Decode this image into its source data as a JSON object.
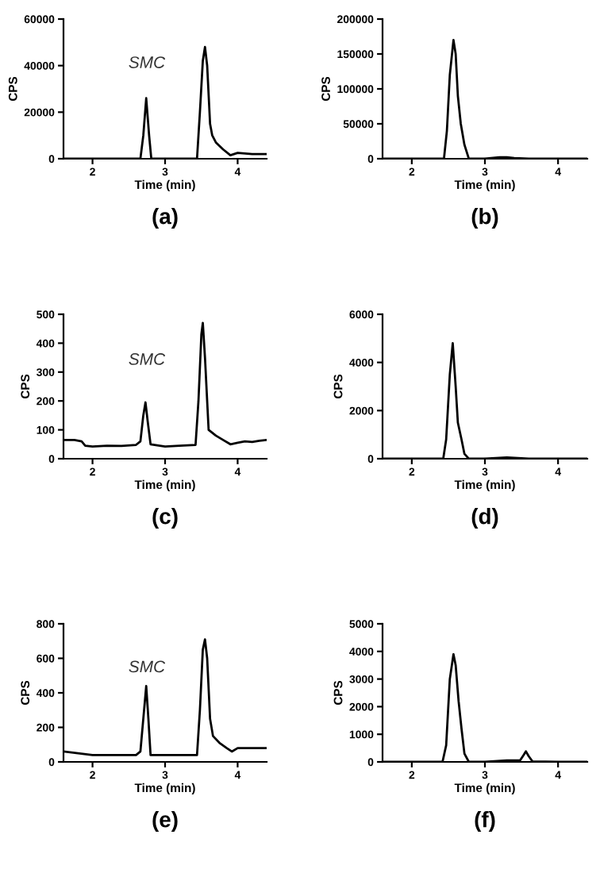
{
  "chart_data": [
    {
      "type": "line",
      "xlabel": "Time (min)",
      "ylabel": "CPS",
      "xlim": [
        1.6,
        4.4
      ],
      "xticks": [
        2,
        3,
        4
      ],
      "ylim": [
        0,
        60000
      ],
      "yticks": [
        0,
        20000,
        40000,
        60000
      ],
      "grid": false,
      "legend": false,
      "marker": "none",
      "line_style": "solid",
      "series": [
        {
          "color": "#000000",
          "x": [
            1.6,
            2.0,
            2.5,
            2.66,
            2.7,
            2.74,
            2.78,
            2.81,
            3.0,
            3.44,
            3.48,
            3.52,
            3.55,
            3.58,
            3.62,
            3.65,
            3.7,
            3.8,
            3.9,
            4.0,
            4.2,
            4.4
          ],
          "values": [
            0,
            0,
            0,
            0,
            10000,
            26000,
            10000,
            0,
            0,
            0,
            20000,
            42000,
            48000,
            40000,
            15000,
            10000,
            7000,
            4000,
            1500,
            2500,
            2000,
            2000
          ]
        }
      ],
      "title": "(a)",
      "annotations": [
        "SMC"
      ]
    },
    {
      "type": "line",
      "xlabel": "Time (min)",
      "ylabel": "CPS",
      "xlim": [
        1.6,
        4.4
      ],
      "xticks": [
        2,
        3,
        4
      ],
      "ylim": [
        0,
        200000
      ],
      "yticks": [
        0,
        50000,
        100000,
        150000,
        200000
      ],
      "grid": false,
      "legend": false,
      "marker": "none",
      "line_style": "solid",
      "series": [
        {
          "color": "#000000",
          "x": [
            1.6,
            2.0,
            2.44,
            2.48,
            2.52,
            2.57,
            2.6,
            2.63,
            2.67,
            2.72,
            2.78,
            3.0,
            3.2,
            3.3,
            3.4,
            3.6,
            4.0,
            4.4
          ],
          "values": [
            0,
            0,
            0,
            40000,
            120000,
            170000,
            150000,
            90000,
            50000,
            20000,
            0,
            0,
            2000,
            2000,
            1000,
            0,
            0,
            0
          ]
        }
      ],
      "title": "(b)"
    },
    {
      "type": "line",
      "xlabel": "Time (min)",
      "ylabel": "CPS",
      "xlim": [
        1.6,
        4.4
      ],
      "xticks": [
        2,
        3,
        4
      ],
      "ylim": [
        0,
        500
      ],
      "yticks": [
        0,
        100,
        200,
        300,
        400,
        500
      ],
      "grid": false,
      "legend": false,
      "marker": "none",
      "line_style": "solid",
      "series": [
        {
          "color": "#000000",
          "x": [
            1.6,
            1.75,
            1.85,
            1.9,
            2.0,
            2.2,
            2.4,
            2.6,
            2.66,
            2.7,
            2.73,
            2.76,
            2.8,
            3.0,
            3.2,
            3.42,
            3.46,
            3.5,
            3.52,
            3.55,
            3.6,
            3.7,
            3.8,
            3.9,
            4.0,
            4.1,
            4.2,
            4.3,
            4.4
          ],
          "values": [
            65,
            65,
            60,
            45,
            42,
            45,
            44,
            48,
            60,
            150,
            195,
            130,
            50,
            42,
            45,
            48,
            200,
            430,
            470,
            350,
            100,
            80,
            65,
            50,
            55,
            60,
            58,
            62,
            65
          ]
        }
      ],
      "title": "(c)",
      "annotations": [
        "SMC"
      ]
    },
    {
      "type": "line",
      "xlabel": "Time (min)",
      "ylabel": "CPS",
      "xlim": [
        1.6,
        4.4
      ],
      "xticks": [
        2,
        3,
        4
      ],
      "ylim": [
        0,
        6000
      ],
      "yticks": [
        0,
        2000,
        4000,
        6000
      ],
      "grid": false,
      "legend": false,
      "marker": "none",
      "line_style": "solid",
      "series": [
        {
          "color": "#000000",
          "x": [
            1.6,
            2.0,
            2.43,
            2.47,
            2.52,
            2.56,
            2.6,
            2.63,
            2.68,
            2.72,
            2.78,
            3.0,
            3.3,
            3.6,
            4.0,
            4.4
          ],
          "values": [
            0,
            0,
            0,
            800,
            3500,
            4800,
            3000,
            1500,
            800,
            200,
            0,
            0,
            50,
            0,
            0,
            0
          ]
        }
      ],
      "title": "(d)"
    },
    {
      "type": "line",
      "xlabel": "Time (min)",
      "ylabel": "CPS",
      "xlim": [
        1.6,
        4.4
      ],
      "xticks": [
        2,
        3,
        4
      ],
      "ylim": [
        0,
        800
      ],
      "yticks": [
        0,
        200,
        400,
        600,
        800
      ],
      "grid": false,
      "legend": false,
      "marker": "none",
      "line_style": "solid",
      "series": [
        {
          "color": "#000000",
          "x": [
            1.6,
            1.8,
            2.0,
            2.3,
            2.6,
            2.66,
            2.7,
            2.74,
            2.77,
            2.8,
            3.0,
            3.3,
            3.44,
            3.48,
            3.52,
            3.55,
            3.58,
            3.62,
            3.66,
            3.75,
            3.85,
            3.92,
            4.0,
            4.2,
            4.4
          ],
          "values": [
            60,
            50,
            40,
            40,
            40,
            60,
            250,
            440,
            250,
            40,
            40,
            40,
            40,
            300,
            650,
            710,
            600,
            250,
            150,
            110,
            80,
            60,
            80,
            80,
            80
          ]
        }
      ],
      "title": "(e)",
      "annotations": [
        "SMC"
      ]
    },
    {
      "type": "line",
      "xlabel": "Time (min)",
      "ylabel": "CPS",
      "xlim": [
        1.6,
        4.4
      ],
      "xticks": [
        2,
        3,
        4
      ],
      "ylim": [
        0,
        5000
      ],
      "yticks": [
        0,
        1000,
        2000,
        3000,
        4000,
        5000
      ],
      "grid": false,
      "legend": false,
      "marker": "none",
      "line_style": "solid",
      "series": [
        {
          "color": "#000000",
          "x": [
            1.6,
            2.0,
            2.42,
            2.47,
            2.52,
            2.57,
            2.6,
            2.64,
            2.68,
            2.72,
            2.78,
            3.0,
            3.3,
            3.48,
            3.53,
            3.56,
            3.6,
            3.65,
            4.0,
            4.4
          ],
          "values": [
            0,
            0,
            0,
            600,
            3000,
            3900,
            3500,
            2200,
            1200,
            300,
            0,
            0,
            50,
            50,
            250,
            380,
            200,
            20,
            0,
            0
          ]
        }
      ],
      "title": "(f)"
    }
  ]
}
